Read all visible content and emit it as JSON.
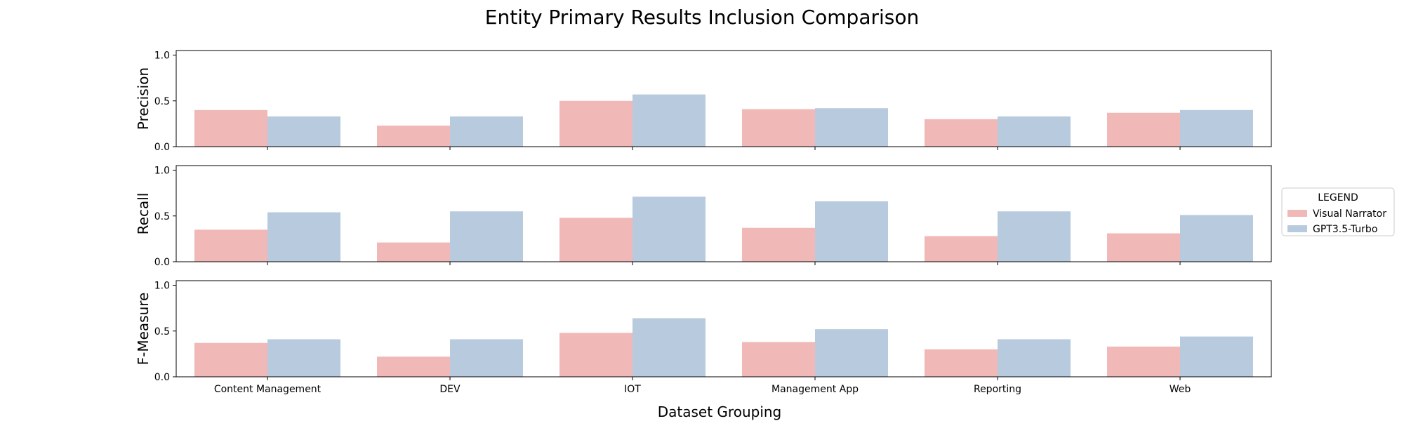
{
  "chart_data": {
    "type": "bar",
    "title": "Entity Primary Results Inclusion Comparison",
    "xlabel": "Dataset Grouping",
    "categories": [
      "Content Management",
      "DEV",
      "IOT",
      "Management App",
      "Reporting",
      "Web"
    ],
    "legend": {
      "title": "LEGEND",
      "position": "right",
      "entries": [
        "Visual Narrator",
        "GPT3.5-Turbo"
      ]
    },
    "colors": {
      "Visual Narrator": "#f0b9b7",
      "GPT3.5-Turbo": "#b8cade"
    },
    "panels": [
      {
        "ylabel": "Precision",
        "ylim": [
          0,
          1.05
        ],
        "yticks": [
          "0.0",
          "0.5",
          "1.0"
        ],
        "series": [
          {
            "name": "Visual Narrator",
            "values": [
              0.4,
              0.23,
              0.5,
              0.41,
              0.3,
              0.37
            ]
          },
          {
            "name": "GPT3.5-Turbo",
            "values": [
              0.33,
              0.33,
              0.57,
              0.42,
              0.33,
              0.4
            ]
          }
        ]
      },
      {
        "ylabel": "Recall",
        "ylim": [
          0,
          1.05
        ],
        "yticks": [
          "0.0",
          "0.5",
          "1.0"
        ],
        "series": [
          {
            "name": "Visual Narrator",
            "values": [
              0.35,
              0.21,
              0.48,
              0.37,
              0.28,
              0.31
            ]
          },
          {
            "name": "GPT3.5-Turbo",
            "values": [
              0.54,
              0.55,
              0.71,
              0.66,
              0.55,
              0.51
            ]
          }
        ]
      },
      {
        "ylabel": "F-Measure",
        "ylim": [
          0,
          1.05
        ],
        "yticks": [
          "0.0",
          "0.5",
          "1.0"
        ],
        "series": [
          {
            "name": "Visual Narrator",
            "values": [
              0.37,
              0.22,
              0.48,
              0.38,
              0.3,
              0.33
            ]
          },
          {
            "name": "GPT3.5-Turbo",
            "values": [
              0.41,
              0.41,
              0.64,
              0.52,
              0.41,
              0.44
            ]
          }
        ]
      }
    ]
  }
}
